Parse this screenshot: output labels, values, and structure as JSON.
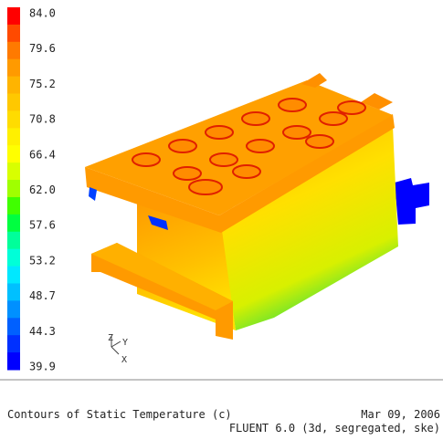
{
  "legend": {
    "labels": [
      "84.0",
      "79.6",
      "75.2",
      "70.8",
      "66.4",
      "62.0",
      "57.6",
      "53.2",
      "48.7",
      "44.3",
      "39.9"
    ]
  },
  "axes": {
    "z": "Z",
    "y": "Y",
    "x": "X"
  },
  "footer": {
    "title": "Contours of Static Temperature (c)",
    "date": "Mar 09, 2006",
    "solver": "FLUENT 6.0 (3d, segregated, ske)"
  }
}
